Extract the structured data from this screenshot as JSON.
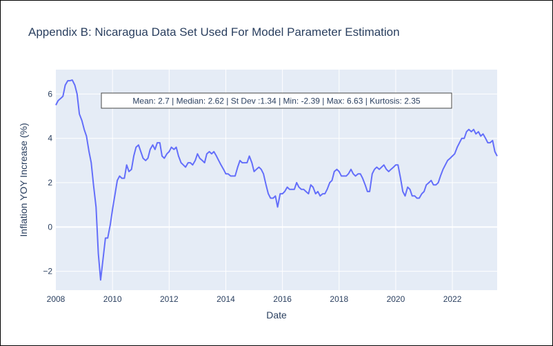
{
  "chart_data": {
    "type": "line",
    "title": "Appendix B: Nicaragua Data Set Used For Model Parameter Estimation",
    "xlabel": "Date",
    "ylabel": "Inflation YOY Increase (%)",
    "xlim": [
      2008.0,
      2023.58
    ],
    "ylim": [
      -2.85,
      7.1
    ],
    "x_ticks": [
      2008,
      2010,
      2012,
      2014,
      2016,
      2018,
      2020,
      2022
    ],
    "x_tick_labels": [
      "2008",
      "2010",
      "2012",
      "2014",
      "2016",
      "2018",
      "2020",
      "2022"
    ],
    "y_ticks": [
      -2,
      0,
      2,
      4,
      6
    ],
    "y_tick_labels": [
      "−2",
      "0",
      "2",
      "4",
      "6"
    ],
    "grid": true,
    "annotation": "Mean: 2.7 | Median: 2.62 | St Dev :1.34 | Min: -2.39 | Max: 6.63 | Kurtosis: 2.35",
    "series": [
      {
        "color": "#636efa",
        "x": [
          2008.0,
          2008.08,
          2008.17,
          2008.25,
          2008.33,
          2008.42,
          2008.5,
          2008.58,
          2008.67,
          2008.75,
          2008.83,
          2008.92,
          2009.0,
          2009.08,
          2009.17,
          2009.25,
          2009.33,
          2009.42,
          2009.5,
          2009.58,
          2009.67,
          2009.75,
          2009.83,
          2009.92,
          2010.0,
          2010.08,
          2010.17,
          2010.25,
          2010.33,
          2010.42,
          2010.5,
          2010.58,
          2010.67,
          2010.75,
          2010.83,
          2010.92,
          2011.0,
          2011.08,
          2011.17,
          2011.25,
          2011.33,
          2011.42,
          2011.5,
          2011.58,
          2011.67,
          2011.75,
          2011.83,
          2011.92,
          2012.0,
          2012.08,
          2012.17,
          2012.25,
          2012.33,
          2012.42,
          2012.5,
          2012.58,
          2012.67,
          2012.75,
          2012.83,
          2012.92,
          2013.0,
          2013.08,
          2013.17,
          2013.25,
          2013.33,
          2013.42,
          2013.5,
          2013.58,
          2013.67,
          2013.75,
          2013.83,
          2013.92,
          2014.0,
          2014.08,
          2014.17,
          2014.25,
          2014.33,
          2014.42,
          2014.5,
          2014.58,
          2014.67,
          2014.75,
          2014.83,
          2014.92,
          2015.0,
          2015.08,
          2015.17,
          2015.25,
          2015.33,
          2015.42,
          2015.5,
          2015.58,
          2015.67,
          2015.75,
          2015.83,
          2015.92,
          2016.0,
          2016.08,
          2016.17,
          2016.25,
          2016.33,
          2016.42,
          2016.5,
          2016.58,
          2016.67,
          2016.75,
          2016.83,
          2016.92,
          2017.0,
          2017.08,
          2017.17,
          2017.25,
          2017.33,
          2017.42,
          2017.5,
          2017.58,
          2017.67,
          2017.75,
          2017.83,
          2017.92,
          2018.0,
          2018.08,
          2018.17,
          2018.25,
          2018.33,
          2018.42,
          2018.5,
          2018.58,
          2018.67,
          2018.75,
          2018.83,
          2018.92,
          2019.0,
          2019.08,
          2019.17,
          2019.25,
          2019.33,
          2019.42,
          2019.5,
          2019.58,
          2019.67,
          2019.75,
          2019.83,
          2019.92,
          2020.0,
          2020.08,
          2020.17,
          2020.25,
          2020.33,
          2020.42,
          2020.5,
          2020.58,
          2020.67,
          2020.75,
          2020.83,
          2020.92,
          2021.0,
          2021.08,
          2021.17,
          2021.25,
          2021.33,
          2021.42,
          2021.5,
          2021.58,
          2021.67,
          2021.75,
          2021.83,
          2021.92,
          2022.0,
          2022.08,
          2022.17,
          2022.25,
          2022.33,
          2022.42,
          2022.5,
          2022.58,
          2022.67,
          2022.75,
          2022.83,
          2022.92,
          2023.0,
          2023.08,
          2023.17,
          2023.25,
          2023.33,
          2023.42,
          2023.5,
          2023.58
        ],
        "y": [
          5.5,
          5.7,
          5.8,
          5.9,
          6.4,
          6.6,
          6.6,
          6.63,
          6.4,
          6.0,
          5.1,
          4.8,
          4.4,
          4.1,
          3.4,
          2.9,
          1.9,
          0.9,
          -1.2,
          -2.39,
          -1.4,
          -0.5,
          -0.5,
          0.1,
          0.8,
          1.4,
          2.1,
          2.3,
          2.2,
          2.2,
          2.8,
          2.5,
          2.6,
          3.2,
          3.6,
          3.7,
          3.4,
          3.1,
          3.0,
          3.1,
          3.5,
          3.7,
          3.5,
          3.8,
          3.8,
          3.2,
          3.1,
          3.3,
          3.4,
          3.6,
          3.5,
          3.6,
          3.2,
          2.9,
          2.8,
          2.7,
          2.9,
          2.9,
          2.8,
          3.0,
          3.3,
          3.1,
          3.0,
          2.9,
          3.3,
          3.4,
          3.3,
          3.4,
          3.2,
          3.0,
          2.8,
          2.6,
          2.4,
          2.4,
          2.3,
          2.3,
          2.3,
          2.7,
          3.0,
          2.9,
          2.9,
          2.9,
          3.2,
          2.9,
          2.5,
          2.6,
          2.7,
          2.6,
          2.4,
          1.9,
          1.5,
          1.3,
          1.3,
          1.4,
          0.9,
          1.5,
          1.5,
          1.6,
          1.8,
          1.7,
          1.7,
          1.7,
          2.0,
          1.8,
          1.7,
          1.7,
          1.6,
          1.5,
          1.9,
          1.8,
          1.5,
          1.6,
          1.4,
          1.5,
          1.5,
          1.7,
          2.0,
          2.1,
          2.5,
          2.6,
          2.5,
          2.3,
          2.3,
          2.3,
          2.4,
          2.6,
          2.4,
          2.3,
          2.4,
          2.4,
          2.2,
          1.9,
          1.6,
          1.6,
          2.4,
          2.6,
          2.7,
          2.6,
          2.7,
          2.8,
          2.6,
          2.5,
          2.6,
          2.7,
          2.8,
          2.8,
          2.2,
          1.6,
          1.4,
          1.8,
          1.7,
          1.4,
          1.4,
          1.3,
          1.3,
          1.5,
          1.6,
          1.9,
          2.0,
          2.1,
          1.9,
          1.9,
          2.0,
          2.3,
          2.6,
          2.8,
          3.0,
          3.1,
          3.2,
          3.3,
          3.6,
          3.8,
          4.0,
          4.0,
          4.3,
          4.4,
          4.3,
          4.4,
          4.2,
          4.3,
          4.1,
          4.2,
          4.0,
          3.8,
          3.8,
          3.9,
          3.4,
          3.2
        ]
      }
    ]
  }
}
